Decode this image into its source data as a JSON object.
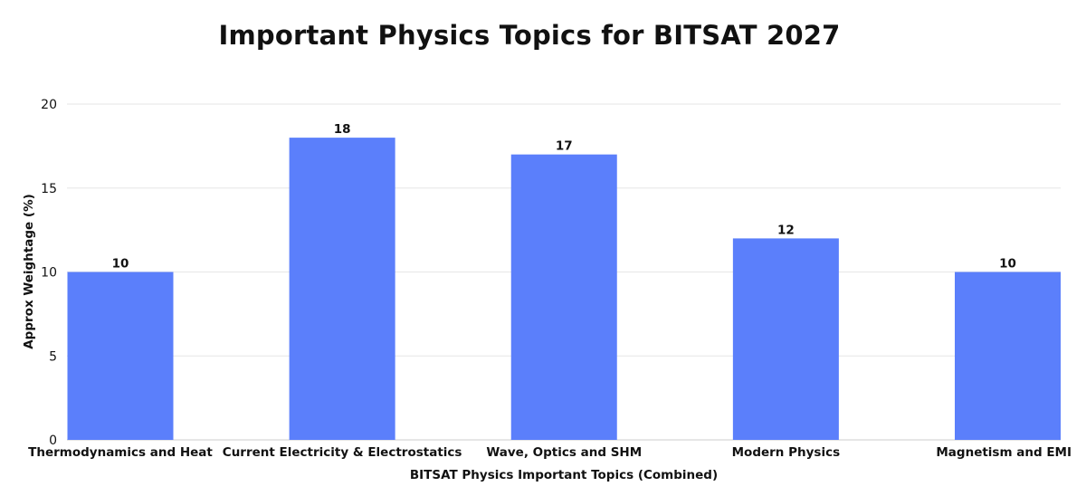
{
  "chart_data": {
    "type": "bar",
    "title": "Important Physics Topics for BITSAT 2027",
    "xlabel": "BITSAT Physics Important Topics (Combined)",
    "ylabel": "Approx Weightage (%)",
    "categories": [
      "Thermodynamics and Heat",
      "Current Electricity & Electrostatics",
      "Wave, Optics and SHM",
      "Modern Physics",
      "Magnetism and EMI"
    ],
    "values": [
      10,
      18,
      17,
      12,
      10
    ],
    "data_labels": [
      "10",
      "18",
      "17",
      "12",
      "10"
    ],
    "ylim": [
      0,
      20
    ],
    "yticks": [
      "0",
      "5",
      "10",
      "15",
      "20"
    ],
    "grid": true,
    "legend": "none",
    "colors": {
      "bar": "#5b7ffb",
      "grid": "#e6e6e6",
      "axis": "#cccccc",
      "text": "#111111"
    }
  }
}
